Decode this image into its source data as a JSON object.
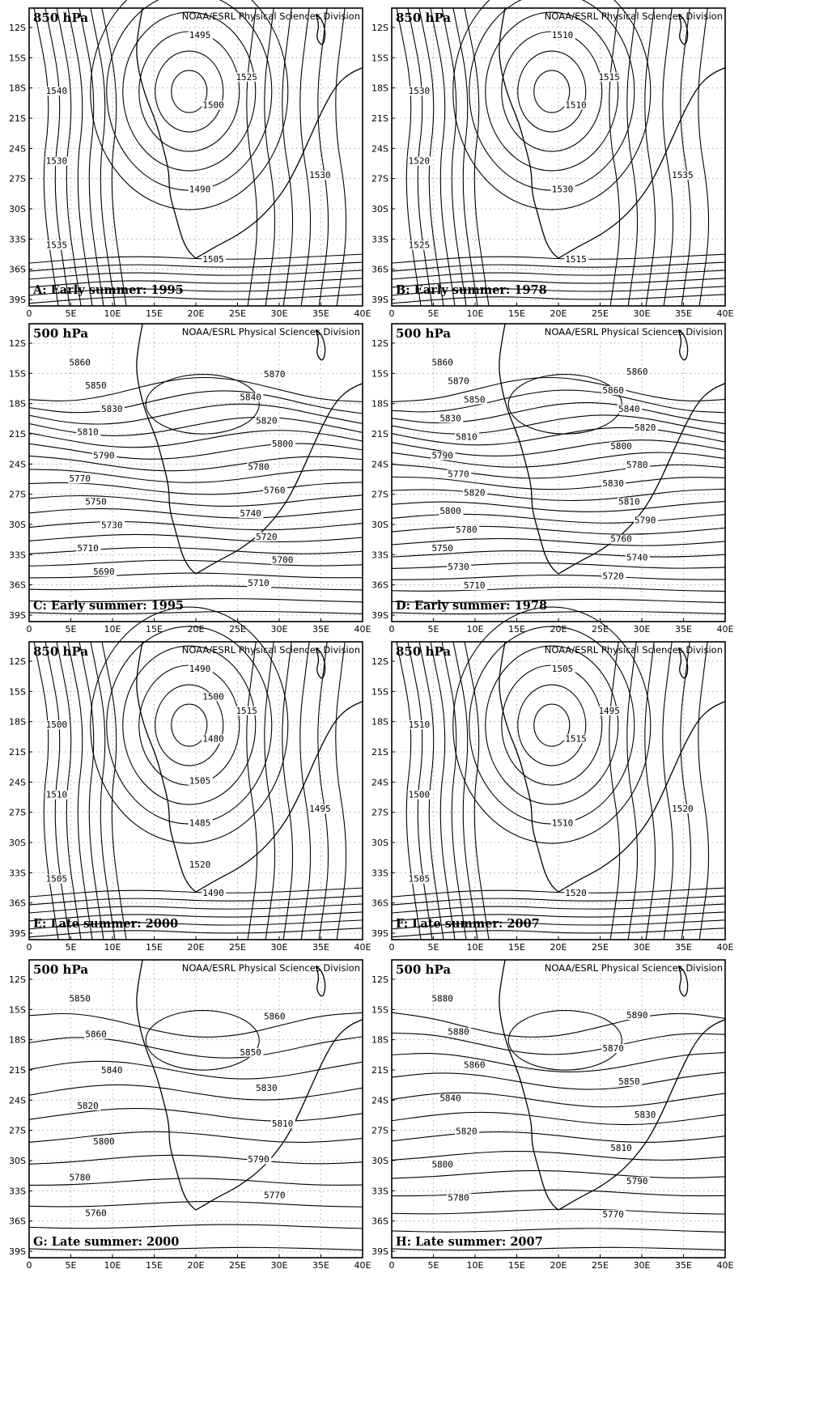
{
  "credit": "NOAA/ESRL Physical Sciences Division",
  "lat_ticks": [
    "12S",
    "15S",
    "18S",
    "21S",
    "24S",
    "27S",
    "30S",
    "33S",
    "36S",
    "39S"
  ],
  "lon_ticks": [
    "0",
    "5E",
    "10E",
    "15E",
    "20E",
    "25E",
    "30E",
    "35E",
    "40E"
  ],
  "panels": [
    {
      "level": "850 hPa",
      "caption": "A: Early summer: 1995",
      "contour_labels": [
        "1495",
        "1490",
        "1500",
        "1505",
        "1530",
        "1540",
        "1535",
        "1530",
        "1525"
      ],
      "contour_values": [
        1490,
        1495,
        1500,
        1505,
        1510,
        1515,
        1520,
        1525,
        1530,
        1535,
        1540
      ]
    },
    {
      "level": "850 hPa",
      "caption": "B: Early summer: 1978",
      "contour_labels": [
        "1510",
        "1530",
        "1510",
        "1515",
        "1535",
        "1530",
        "1525",
        "1520",
        "1515"
      ],
      "contour_values": [
        1505,
        1510,
        1515,
        1520,
        1525,
        1530,
        1535
      ]
    },
    {
      "level": "500 hPa",
      "caption": "C: Early summer: 1995",
      "contour_labels": [
        "5860",
        "5870",
        "5850",
        "5840",
        "5830",
        "5820",
        "5810",
        "5800",
        "5790",
        "5780",
        "5770",
        "5760",
        "5750",
        "5740",
        "5730",
        "5720",
        "5710",
        "5700",
        "5690",
        "5710"
      ],
      "contour_values": [
        5690,
        5700,
        5710,
        5720,
        5730,
        5740,
        5750,
        5760,
        5770,
        5780,
        5790,
        5800,
        5810,
        5820,
        5830,
        5840,
        5850,
        5860,
        5870
      ]
    },
    {
      "level": "500 hPa",
      "caption": "D: Early summer: 1978",
      "contour_labels": [
        "5860",
        "5860",
        "5870",
        "5860",
        "5850",
        "5840",
        "5830",
        "5820",
        "5810",
        "5800",
        "5790",
        "5780",
        "5770",
        "5830",
        "5820",
        "5810",
        "5800",
        "5790",
        "5780",
        "5760",
        "5750",
        "5740",
        "5730",
        "5720",
        "5710"
      ],
      "contour_values": [
        5680,
        5690,
        5700,
        5710,
        5720,
        5730,
        5740,
        5750,
        5760,
        5770,
        5780,
        5790,
        5800,
        5810,
        5820,
        5830,
        5840,
        5850,
        5860,
        5870
      ]
    },
    {
      "level": "850 hPa",
      "caption": "E: Late summer: 2000",
      "contour_labels": [
        "1490",
        "1485",
        "1480",
        "1490",
        "1495",
        "1500",
        "1505",
        "1510",
        "1515",
        "1520",
        "1505",
        "1500"
      ],
      "contour_values": [
        1480,
        1485,
        1490,
        1495,
        1500,
        1505,
        1510,
        1515,
        1520
      ]
    },
    {
      "level": "850 hPa",
      "caption": "F: Late summer: 2007",
      "contour_labels": [
        "1505",
        "1510",
        "1515",
        "1520",
        "1520",
        "1510",
        "1505",
        "1500",
        "1495"
      ],
      "contour_values": [
        1495,
        1500,
        1505,
        1510,
        1515,
        1520
      ]
    },
    {
      "level": "500 hPa",
      "caption": "G: Late summer: 2000",
      "contour_labels": [
        "5850",
        "5860",
        "5860",
        "5850",
        "5840",
        "5830",
        "5820",
        "5810",
        "5800",
        "5790",
        "5780",
        "5770",
        "5760"
      ],
      "contour_values": [
        5760,
        5770,
        5780,
        5790,
        5800,
        5810,
        5820,
        5830,
        5840,
        5850,
        5860
      ]
    },
    {
      "level": "500 hPa",
      "caption": "H: Late summer: 2007",
      "contour_labels": [
        "5880",
        "5890",
        "5880",
        "5870",
        "5860",
        "5850",
        "5840",
        "5830",
        "5820",
        "5810",
        "5800",
        "5790",
        "5780",
        "5770"
      ],
      "contour_values": [
        5770,
        5780,
        5790,
        5800,
        5810,
        5820,
        5830,
        5840,
        5850,
        5860,
        5870,
        5880,
        5890
      ]
    }
  ]
}
